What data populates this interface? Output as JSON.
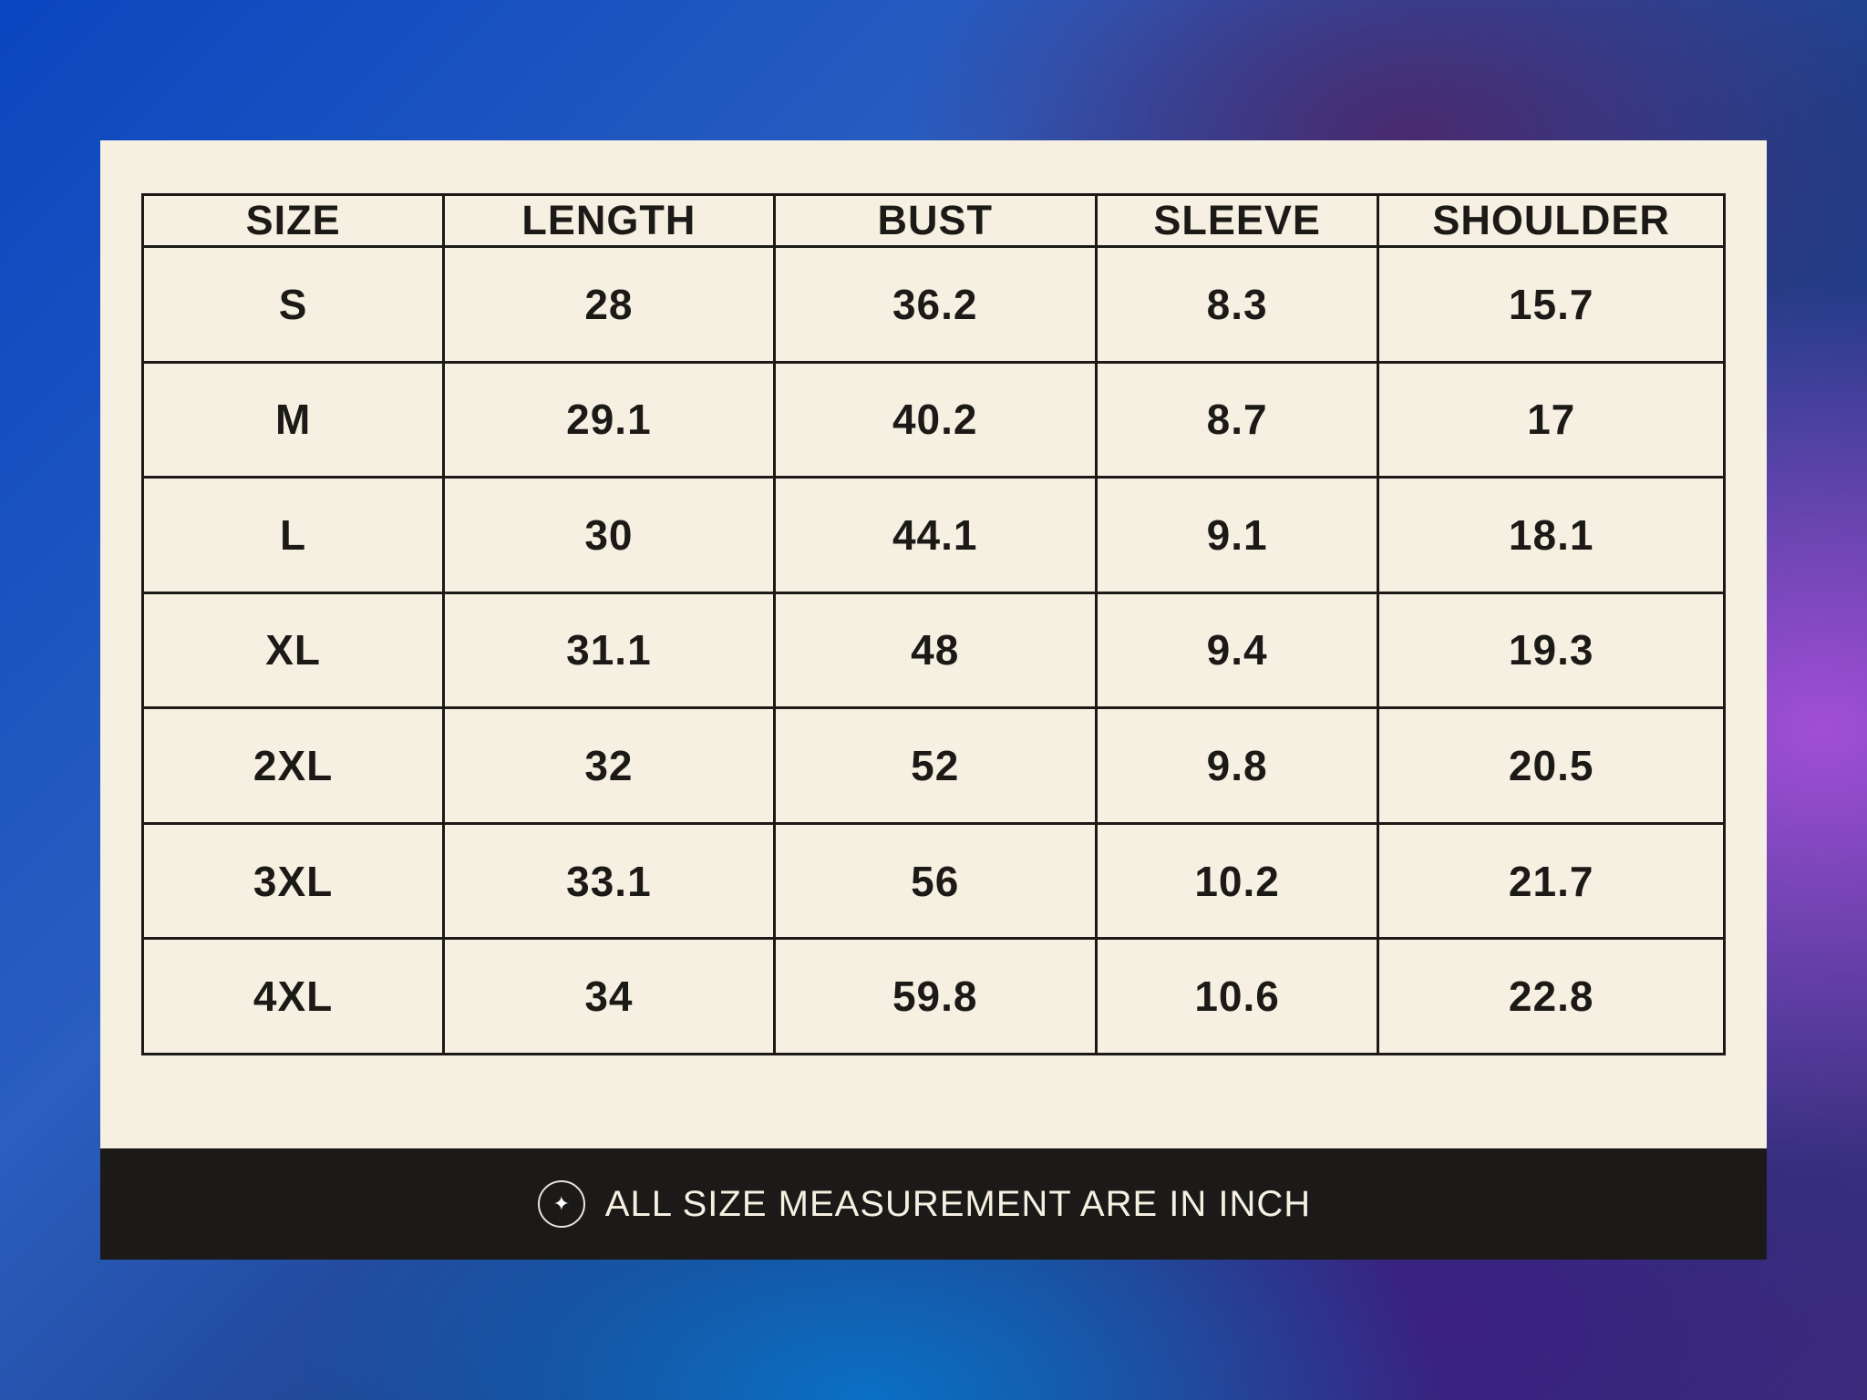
{
  "table": {
    "headers": [
      "SIZE",
      "LENGTH",
      "BUST",
      "SLEEVE",
      "SHOULDER"
    ],
    "rows": [
      [
        "S",
        "28",
        "36.2",
        "8.3",
        "15.7"
      ],
      [
        "M",
        "29.1",
        "40.2",
        "8.7",
        "17"
      ],
      [
        "L",
        "30",
        "44.1",
        "9.1",
        "18.1"
      ],
      [
        "XL",
        "31.1",
        "48",
        "9.4",
        "19.3"
      ],
      [
        "2XL",
        "32",
        "52",
        "9.8",
        "20.5"
      ],
      [
        "3XL",
        "33.1",
        "56",
        "10.2",
        "21.7"
      ],
      [
        "4XL",
        "34",
        "59.8",
        "10.6",
        "22.8"
      ]
    ]
  },
  "footer": {
    "icon": "sparkle-icon",
    "note": "ALL SIZE MEASUREMENT ARE IN INCH"
  },
  "colors": {
    "card": "#f5f0e1",
    "text": "#1c1a17",
    "footer": "#1c1a18"
  }
}
